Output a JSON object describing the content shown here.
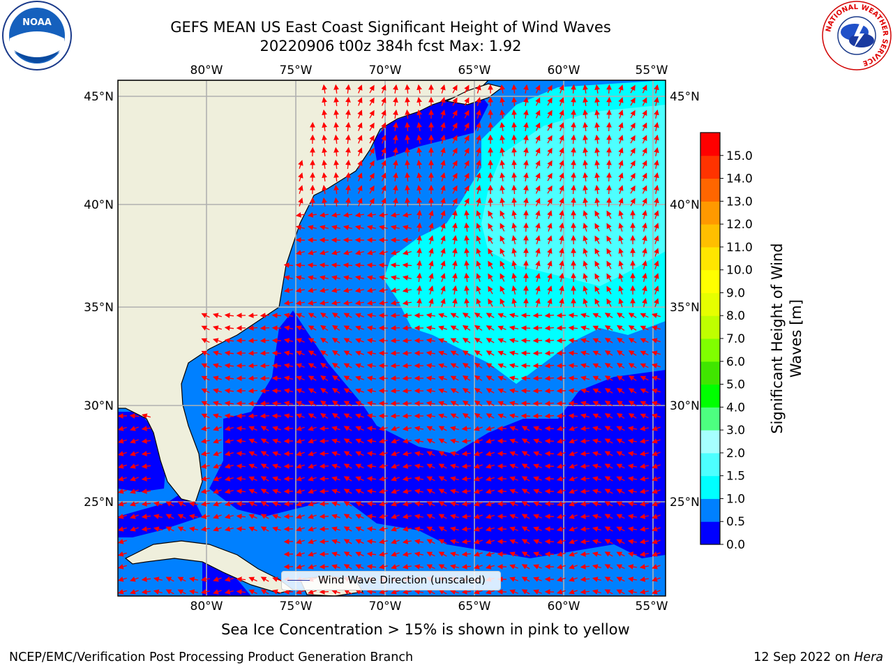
{
  "title_line1": "GEFS MEAN US East Coast Significant Height of Wind Waves",
  "title_line2": "20220906 t00z 384h fcst   Max: 1.92",
  "map": {
    "lon_ticks": [
      "80°W",
      "75°W",
      "70°W",
      "65°W",
      "60°W",
      "55°W"
    ],
    "lat_ticks": [
      "45°N",
      "40°N",
      "35°N",
      "30°N",
      "25°N"
    ],
    "lon_range": [
      -85,
      -54.3
    ],
    "lat_range": [
      20.5,
      46
    ],
    "colors": {
      "land": "#efefdc",
      "ocean_0_05": "#0000ff",
      "ocean_05_10": "#0080ff",
      "ocean_10_15": "#00ffff",
      "ocean_15_20": "#4dffff",
      "grid": "#b0b0b0",
      "arrow": "#ff0000"
    },
    "legend_label": "Wind Wave Direction (unscaled)"
  },
  "colorbar": {
    "label": "Significant Height of Wind Waves [m]",
    "ticks": [
      "0.0",
      "0.5",
      "1.0",
      "1.5",
      "2.0",
      "3.0",
      "4.0",
      "5.0",
      "6.0",
      "7.0",
      "8.0",
      "9.0",
      "10.0",
      "11.0",
      "12.0",
      "13.0",
      "14.0",
      "15.0"
    ],
    "colors": [
      "#0000ff",
      "#0080ff",
      "#00ffff",
      "#4dffff",
      "#a6ffff",
      "#4dff80",
      "#00ff00",
      "#40e600",
      "#80ff00",
      "#bfff00",
      "#e6ff00",
      "#ffff00",
      "#ffe600",
      "#ffbf00",
      "#ff9900",
      "#ff6600",
      "#ff3300",
      "#ff0000"
    ]
  },
  "logos": {
    "left": "NOAA",
    "right": "NATIONAL WEATHER SERVICE"
  },
  "footer": {
    "note": "Sea Ice Concentration > 15% is shown in pink to yellow",
    "left": "NCEP/EMC/Verification Post Processing Product Generation Branch",
    "right_date": "12 Sep 2022 on",
    "right_host": "Hera"
  }
}
